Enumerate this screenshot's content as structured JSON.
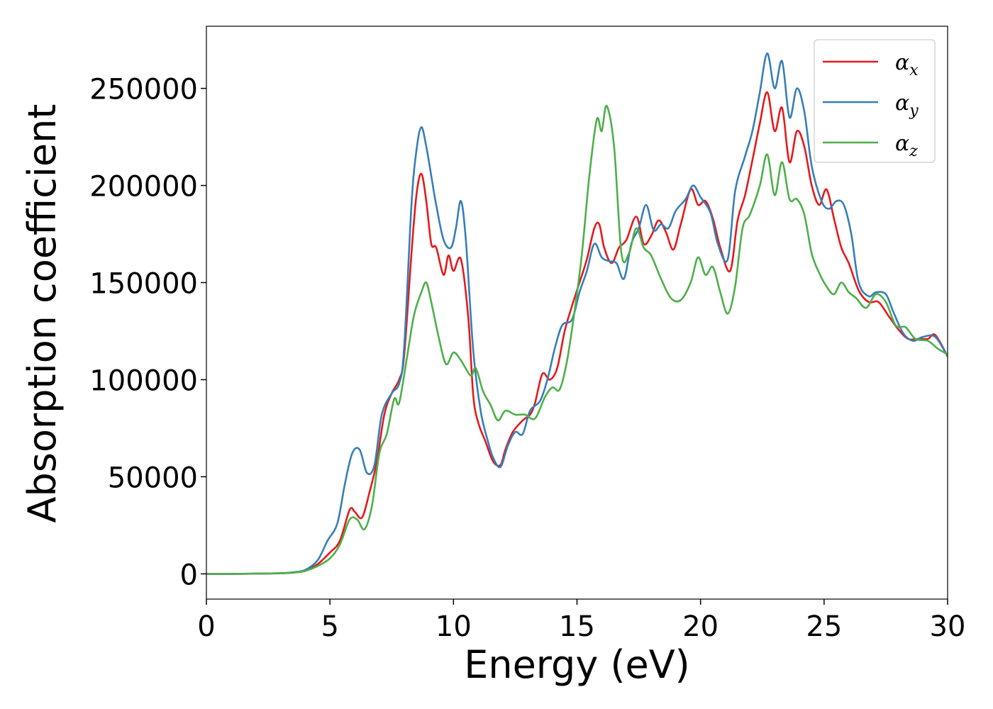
{
  "chart_data": {
    "type": "line",
    "title": "",
    "xlabel": "Energy (eV)",
    "ylabel": "Absorption coefficient",
    "xlim": [
      0,
      30
    ],
    "ylim": [
      -13000,
      282000
    ],
    "xticks": [
      0,
      5,
      10,
      15,
      20,
      25,
      30
    ],
    "yticks": [
      0,
      50000,
      100000,
      150000,
      200000,
      250000
    ],
    "grid": false,
    "legend_position": "top-right",
    "series": [
      {
        "name": "α",
        "subscript": "x",
        "color": "#e41a1c",
        "points": [
          [
            0,
            0
          ],
          [
            1,
            0
          ],
          [
            2,
            100
          ],
          [
            3,
            300
          ],
          [
            3.5,
            700
          ],
          [
            4,
            1500
          ],
          [
            4.5,
            5000
          ],
          [
            5,
            11000
          ],
          [
            5.4,
            17000
          ],
          [
            5.8,
            33000
          ],
          [
            6.0,
            32000
          ],
          [
            6.3,
            29000
          ],
          [
            6.6,
            42000
          ],
          [
            6.9,
            58000
          ],
          [
            7.2,
            82000
          ],
          [
            7.5,
            93000
          ],
          [
            7.8,
            100000
          ],
          [
            8.0,
            112000
          ],
          [
            8.3,
            165000
          ],
          [
            8.5,
            195000
          ],
          [
            8.7,
            206000
          ],
          [
            8.9,
            192000
          ],
          [
            9.1,
            170000
          ],
          [
            9.3,
            168000
          ],
          [
            9.6,
            154000
          ],
          [
            9.8,
            164000
          ],
          [
            10.0,
            156000
          ],
          [
            10.3,
            162000
          ],
          [
            10.6,
            132000
          ],
          [
            10.8,
            92000
          ],
          [
            11.0,
            78000
          ],
          [
            11.3,
            68000
          ],
          [
            11.6,
            58000
          ],
          [
            11.9,
            56000
          ],
          [
            12.1,
            64000
          ],
          [
            12.4,
            73000
          ],
          [
            12.8,
            79000
          ],
          [
            13.1,
            82000
          ],
          [
            13.3,
            88000
          ],
          [
            13.6,
            103000
          ],
          [
            13.9,
            100000
          ],
          [
            14.2,
            106000
          ],
          [
            14.5,
            125000
          ],
          [
            14.8,
            138000
          ],
          [
            15.1,
            150000
          ],
          [
            15.4,
            162000
          ],
          [
            15.7,
            178000
          ],
          [
            15.9,
            180000
          ],
          [
            16.1,
            168000
          ],
          [
            16.4,
            160000
          ],
          [
            16.7,
            168000
          ],
          [
            17.0,
            172000
          ],
          [
            17.4,
            184000
          ],
          [
            17.7,
            170000
          ],
          [
            18.0,
            174000
          ],
          [
            18.3,
            182000
          ],
          [
            18.6,
            176000
          ],
          [
            18.9,
            167000
          ],
          [
            19.2,
            180000
          ],
          [
            19.6,
            198000
          ],
          [
            19.9,
            190000
          ],
          [
            20.2,
            192000
          ],
          [
            20.5,
            183000
          ],
          [
            20.8,
            168000
          ],
          [
            21.2,
            156000
          ],
          [
            21.5,
            182000
          ],
          [
            21.8,
            195000
          ],
          [
            22.1,
            213000
          ],
          [
            22.4,
            232000
          ],
          [
            22.7,
            248000
          ],
          [
            23.0,
            228000
          ],
          [
            23.3,
            240000
          ],
          [
            23.6,
            212000
          ],
          [
            23.9,
            228000
          ],
          [
            24.2,
            220000
          ],
          [
            24.5,
            200000
          ],
          [
            24.8,
            190000
          ],
          [
            25.1,
            198000
          ],
          [
            25.4,
            183000
          ],
          [
            25.7,
            168000
          ],
          [
            26.0,
            160000
          ],
          [
            26.4,
            146000
          ],
          [
            26.8,
            140000
          ],
          [
            27.2,
            140000
          ],
          [
            27.6,
            133000
          ],
          [
            28.0,
            126000
          ],
          [
            28.4,
            121000
          ],
          [
            28.8,
            121000
          ],
          [
            29.2,
            121000
          ],
          [
            29.5,
            123000
          ],
          [
            30.0,
            112000
          ]
        ]
      },
      {
        "name": "α",
        "subscript": "y",
        "color": "#377eb8",
        "points": [
          [
            0,
            0
          ],
          [
            1,
            0
          ],
          [
            2,
            100
          ],
          [
            3,
            300
          ],
          [
            3.5,
            800
          ],
          [
            4,
            2000
          ],
          [
            4.5,
            7000
          ],
          [
            4.9,
            17000
          ],
          [
            5.3,
            26000
          ],
          [
            5.6,
            46000
          ],
          [
            5.9,
            62000
          ],
          [
            6.2,
            64000
          ],
          [
            6.5,
            52000
          ],
          [
            6.8,
            56000
          ],
          [
            7.1,
            82000
          ],
          [
            7.5,
            93000
          ],
          [
            7.8,
            98000
          ],
          [
            8.0,
            116000
          ],
          [
            8.3,
            190000
          ],
          [
            8.5,
            218000
          ],
          [
            8.7,
            230000
          ],
          [
            8.9,
            220000
          ],
          [
            9.1,
            205000
          ],
          [
            9.3,
            190000
          ],
          [
            9.6,
            172000
          ],
          [
            9.9,
            168000
          ],
          [
            10.1,
            178000
          ],
          [
            10.3,
            192000
          ],
          [
            10.5,
            172000
          ],
          [
            10.8,
            115000
          ],
          [
            11.1,
            84000
          ],
          [
            11.4,
            68000
          ],
          [
            11.6,
            60000
          ],
          [
            11.9,
            55000
          ],
          [
            12.2,
            66000
          ],
          [
            12.5,
            73000
          ],
          [
            12.8,
            72000
          ],
          [
            13.1,
            84000
          ],
          [
            13.5,
            89000
          ],
          [
            13.8,
            100000
          ],
          [
            14.1,
            116000
          ],
          [
            14.4,
            128000
          ],
          [
            14.8,
            131000
          ],
          [
            15.1,
            145000
          ],
          [
            15.4,
            156000
          ],
          [
            15.7,
            170000
          ],
          [
            16.0,
            163000
          ],
          [
            16.3,
            161000
          ],
          [
            16.6,
            160000
          ],
          [
            16.9,
            152000
          ],
          [
            17.2,
            170000
          ],
          [
            17.5,
            178000
          ],
          [
            17.8,
            190000
          ],
          [
            18.1,
            177000
          ],
          [
            18.4,
            180000
          ],
          [
            18.7,
            178000
          ],
          [
            19.0,
            187000
          ],
          [
            19.4,
            193000
          ],
          [
            19.7,
            200000
          ],
          [
            20.0,
            194000
          ],
          [
            20.4,
            186000
          ],
          [
            20.7,
            170000
          ],
          [
            21.1,
            162000
          ],
          [
            21.4,
            197000
          ],
          [
            21.8,
            215000
          ],
          [
            22.1,
            228000
          ],
          [
            22.4,
            248000
          ],
          [
            22.7,
            268000
          ],
          [
            23.0,
            250000
          ],
          [
            23.3,
            264000
          ],
          [
            23.6,
            235000
          ],
          [
            23.9,
            250000
          ],
          [
            24.2,
            238000
          ],
          [
            24.5,
            210000
          ],
          [
            24.9,
            192000
          ],
          [
            25.2,
            188000
          ],
          [
            25.5,
            192000
          ],
          [
            25.8,
            190000
          ],
          [
            26.1,
            175000
          ],
          [
            26.4,
            150000
          ],
          [
            26.8,
            143000
          ],
          [
            27.1,
            145000
          ],
          [
            27.5,
            144000
          ],
          [
            27.8,
            135000
          ],
          [
            28.2,
            124000
          ],
          [
            28.6,
            120000
          ],
          [
            29.0,
            122000
          ],
          [
            29.5,
            122000
          ],
          [
            30.0,
            112000
          ]
        ]
      },
      {
        "name": "α",
        "subscript": "z",
        "color": "#4daf4a",
        "points": [
          [
            0,
            0
          ],
          [
            1,
            0
          ],
          [
            2,
            100
          ],
          [
            3,
            300
          ],
          [
            3.5,
            600
          ],
          [
            4,
            1500
          ],
          [
            4.5,
            4000
          ],
          [
            5,
            8000
          ],
          [
            5.4,
            15000
          ],
          [
            5.8,
            28000
          ],
          [
            6.1,
            28000
          ],
          [
            6.4,
            23000
          ],
          [
            6.7,
            35000
          ],
          [
            7.0,
            62000
          ],
          [
            7.3,
            72000
          ],
          [
            7.6,
            90000
          ],
          [
            7.8,
            88000
          ],
          [
            8.1,
            110000
          ],
          [
            8.4,
            133000
          ],
          [
            8.7,
            145000
          ],
          [
            8.9,
            150000
          ],
          [
            9.1,
            140000
          ],
          [
            9.4,
            122000
          ],
          [
            9.7,
            108000
          ],
          [
            10.0,
            114000
          ],
          [
            10.3,
            110000
          ],
          [
            10.7,
            102000
          ],
          [
            10.9,
            106000
          ],
          [
            11.2,
            94000
          ],
          [
            11.5,
            87000
          ],
          [
            11.8,
            79000
          ],
          [
            12.1,
            84000
          ],
          [
            12.5,
            82000
          ],
          [
            12.9,
            82000
          ],
          [
            13.3,
            80000
          ],
          [
            13.7,
            91000
          ],
          [
            14.0,
            96000
          ],
          [
            14.3,
            95000
          ],
          [
            14.6,
            110000
          ],
          [
            14.9,
            135000
          ],
          [
            15.2,
            165000
          ],
          [
            15.5,
            205000
          ],
          [
            15.8,
            234000
          ],
          [
            16.0,
            228000
          ],
          [
            16.2,
            241000
          ],
          [
            16.5,
            220000
          ],
          [
            16.8,
            165000
          ],
          [
            17.1,
            165000
          ],
          [
            17.4,
            178000
          ],
          [
            17.7,
            168000
          ],
          [
            18.0,
            164000
          ],
          [
            18.4,
            152000
          ],
          [
            18.8,
            142000
          ],
          [
            19.2,
            141000
          ],
          [
            19.6,
            150000
          ],
          [
            19.9,
            163000
          ],
          [
            20.2,
            154000
          ],
          [
            20.5,
            158000
          ],
          [
            20.8,
            145000
          ],
          [
            21.1,
            134000
          ],
          [
            21.4,
            148000
          ],
          [
            21.7,
            178000
          ],
          [
            22.0,
            185000
          ],
          [
            22.4,
            200000
          ],
          [
            22.7,
            216000
          ],
          [
            23.0,
            195000
          ],
          [
            23.3,
            212000
          ],
          [
            23.6,
            193000
          ],
          [
            23.9,
            193000
          ],
          [
            24.2,
            185000
          ],
          [
            24.5,
            165000
          ],
          [
            24.8,
            155000
          ],
          [
            25.1,
            148000
          ],
          [
            25.4,
            144000
          ],
          [
            25.7,
            150000
          ],
          [
            26.0,
            145000
          ],
          [
            26.3,
            142000
          ],
          [
            26.7,
            137000
          ],
          [
            27.1,
            144000
          ],
          [
            27.5,
            140000
          ],
          [
            27.9,
            128000
          ],
          [
            28.3,
            127000
          ],
          [
            28.7,
            121000
          ],
          [
            29.2,
            120000
          ],
          [
            29.6,
            116000
          ],
          [
            30.0,
            113000
          ]
        ]
      }
    ]
  }
}
